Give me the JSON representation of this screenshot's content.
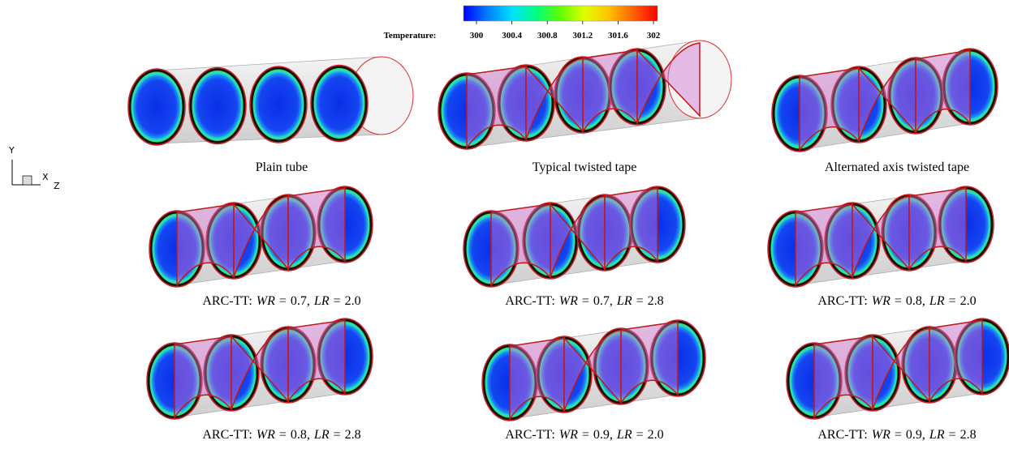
{
  "colorbar": {
    "label": "Temperature:",
    "clim": [
      300,
      302
    ],
    "ticks": [
      300,
      300.4,
      300.8,
      301.2,
      301.6,
      302
    ],
    "colors": [
      "#0000ff",
      "#0080ff",
      "#00e0ff",
      "#00ff80",
      "#60ff00",
      "#e0ff00",
      "#ffc000",
      "#ff6000",
      "#ff0000"
    ]
  },
  "axes_triad": {
    "y": "Y",
    "x": "X",
    "z": "Z"
  },
  "panels": [
    {
      "caption": [
        {
          "text": "Plain tube",
          "italic": false
        }
      ]
    },
    {
      "caption": [
        {
          "text": "Typical twisted tape",
          "italic": false
        }
      ]
    },
    {
      "caption": [
        {
          "text": "Alternated axis twisted tape",
          "italic": false
        }
      ]
    },
    {
      "caption": [
        {
          "text": "ARC-TT:",
          "italic": false
        },
        {
          "text": "WR",
          "italic": true
        },
        {
          "text": "=",
          "italic": false
        },
        {
          "text": "0.7,",
          "italic": false
        },
        {
          "text": "LR",
          "italic": true
        },
        {
          "text": "=",
          "italic": false
        },
        {
          "text": "2.0",
          "italic": false
        }
      ]
    },
    {
      "caption": [
        {
          "text": "ARC-TT:",
          "italic": false
        },
        {
          "text": "WR",
          "italic": true
        },
        {
          "text": "=",
          "italic": false
        },
        {
          "text": "0.7,",
          "italic": false
        },
        {
          "text": "LR",
          "italic": true
        },
        {
          "text": "=",
          "italic": false
        },
        {
          "text": "2.8",
          "italic": false
        }
      ]
    },
    {
      "caption": [
        {
          "text": "ARC-TT:",
          "italic": false
        },
        {
          "text": "WR",
          "italic": true
        },
        {
          "text": "=",
          "italic": false
        },
        {
          "text": "0.8,",
          "italic": false
        },
        {
          "text": "LR",
          "italic": true
        },
        {
          "text": "=",
          "italic": false
        },
        {
          "text": "2.0",
          "italic": false
        }
      ]
    },
    {
      "caption": [
        {
          "text": "ARC-TT:",
          "italic": false
        },
        {
          "text": "WR",
          "italic": true
        },
        {
          "text": "=",
          "italic": false
        },
        {
          "text": "0.8,",
          "italic": false
        },
        {
          "text": "LR",
          "italic": true
        },
        {
          "text": "=",
          "italic": false
        },
        {
          "text": "2.8",
          "italic": false
        }
      ]
    },
    {
      "caption": [
        {
          "text": "ARC-TT:",
          "italic": false
        },
        {
          "text": "WR",
          "italic": true
        },
        {
          "text": "=",
          "italic": false
        },
        {
          "text": "0.9,",
          "italic": false
        },
        {
          "text": "LR",
          "italic": true
        },
        {
          "text": "=",
          "italic": false
        },
        {
          "text": "2.0",
          "italic": false
        }
      ]
    },
    {
      "caption": [
        {
          "text": "ARC-TT:",
          "italic": false
        },
        {
          "text": "WR",
          "italic": true
        },
        {
          "text": "=",
          "italic": false
        },
        {
          "text": "0.9,",
          "italic": false
        },
        {
          "text": "LR",
          "italic": true
        },
        {
          "text": "=",
          "italic": false
        },
        {
          "text": "2.8",
          "italic": false
        }
      ]
    }
  ]
}
